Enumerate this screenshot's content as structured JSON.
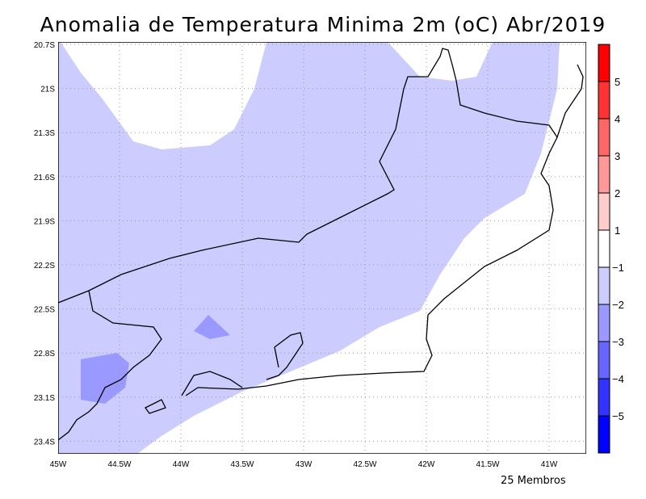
{
  "title": "Anomalia de Temperatura Minima 2m (oC) Abr/2019",
  "footer": "25 Membros",
  "chart_data": {
    "type": "heatmap",
    "title": "Anomalia de Temperatura Minima 2m (oC) Abr/2019",
    "x_ticks": [
      "45W",
      "44.5W",
      "44W",
      "43.5W",
      "43W",
      "42.5W",
      "42W",
      "41.5W",
      "41W"
    ],
    "y_ticks": [
      "20.7S",
      "21S",
      "21.3S",
      "21.6S",
      "21.9S",
      "22.2S",
      "22.5S",
      "22.8S",
      "23.1S",
      "23.4S"
    ],
    "xlim": [
      -45,
      -40.7
    ],
    "ylim": [
      -23.5,
      -20.68
    ],
    "colorbar": {
      "labels": [
        "5",
        "4",
        "3",
        "2",
        "1",
        "-1",
        "-2",
        "-3",
        "-4",
        "-5"
      ],
      "colors": [
        "#ff0000",
        "#ff3333",
        "#ff6666",
        "#ff9999",
        "#ffcccc",
        "#ffffff",
        "#ccccff",
        "#9999ff",
        "#6666ff",
        "#3333ff",
        "#0000ff"
      ]
    },
    "fields": [
      {
        "range": "-2 to -1",
        "color": "#ccccff",
        "description_region": "most of domain west/north"
      },
      {
        "range": "-3 to -2",
        "color": "#9999ff",
        "description_region": "small patches southwest"
      },
      {
        "range": "-1 to 1",
        "color": "#ffffff",
        "description_region": "southeast coast and north"
      }
    ]
  }
}
